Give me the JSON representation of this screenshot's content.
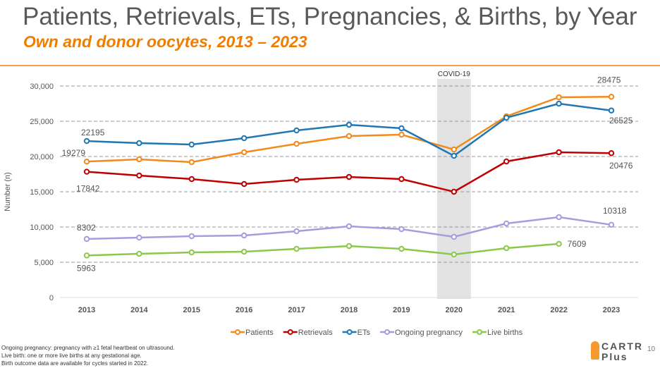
{
  "header": {
    "title": "Patients, Retrievals, ETs, Pregnancies, & Births, by Year",
    "subtitle": "Own and donor oocytes, 2013 – 2023"
  },
  "chart_data": {
    "type": "line",
    "ylabel": "Number (n)",
    "ylim": [
      0,
      30000
    ],
    "yticks": [
      "0",
      "5,000",
      "10,000",
      "15,000",
      "20,000",
      "25,000",
      "30,000"
    ],
    "categories": [
      "2013",
      "2014",
      "2015",
      "2016",
      "2017",
      "2018",
      "2019",
      "2020",
      "2021",
      "2022",
      "2023"
    ],
    "annotation": "COVID-19",
    "legend_position": "bottom",
    "series": [
      {
        "name": "Patients",
        "color": "#f28a1c",
        "values": [
          19279,
          19600,
          19200,
          20600,
          21800,
          22900,
          23100,
          21000,
          25700,
          28400,
          28475
        ],
        "labels": {
          "0": "19279",
          "10": "28475"
        }
      },
      {
        "name": "Retrievals",
        "color": "#c00000",
        "values": [
          17842,
          17300,
          16800,
          16100,
          16700,
          17100,
          16800,
          15000,
          19300,
          20600,
          20476
        ],
        "labels": {
          "0": "17842",
          "10": "20476"
        }
      },
      {
        "name": "ETs",
        "color": "#1f78b4",
        "values": [
          22195,
          21900,
          21700,
          22600,
          23700,
          24500,
          24000,
          20100,
          25500,
          27500,
          26525
        ],
        "labels": {
          "0": "22195",
          "10": "26525"
        }
      },
      {
        "name": "Ongoing pregnancy",
        "color": "#a99be0",
        "values": [
          8302,
          8500,
          8700,
          8800,
          9400,
          10100,
          9700,
          8600,
          10500,
          11400,
          10318
        ],
        "labels": {
          "0": "8302",
          "10": "10318"
        }
      },
      {
        "name": "Live births",
        "color": "#8cc84b",
        "values": [
          5963,
          6200,
          6400,
          6500,
          6900,
          7300,
          6900,
          6100,
          7000,
          7609,
          null
        ],
        "labels": {
          "0": "5963",
          "9": "7609"
        }
      }
    ]
  },
  "footer": {
    "notes": [
      "Ongoing pregnancy: pregnancy with ≥1 fetal heartbeat on ultrasound.",
      "Live birth: one or more live births at any gestational age.",
      "Birth outcome data are available for cycles started in 2022."
    ],
    "logo": "CARTR Plus",
    "logo_line1": "CARTR",
    "logo_line2": "Plus",
    "page": "10"
  }
}
